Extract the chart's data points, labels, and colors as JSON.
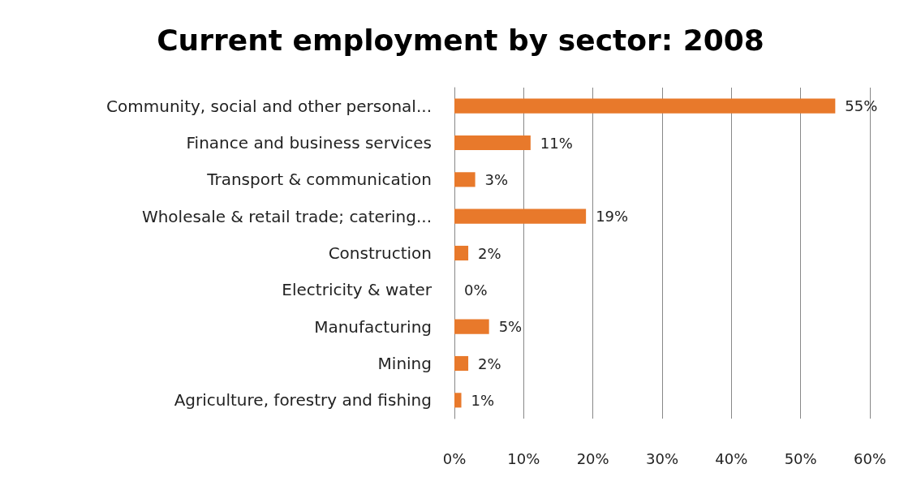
{
  "chart_data": {
    "type": "bar",
    "orientation": "horizontal",
    "title": "Current employment by sector: 2008",
    "categories": [
      "Community, social and other personal...",
      "Finance and business services",
      "Transport & communication",
      "Wholesale & retail trade; catering...",
      "Construction",
      "Electricity & water",
      "Manufacturing",
      "Mining",
      "Agriculture, forestry and fishing"
    ],
    "values": [
      55,
      11,
      3,
      19,
      2,
      0,
      5,
      2,
      1
    ],
    "value_labels": [
      "55%",
      "11%",
      "3%",
      "19%",
      "2%",
      "0%",
      "5%",
      "2%",
      "1%"
    ],
    "color": "#e8792b",
    "xlim": [
      0,
      60
    ],
    "xticks": [
      {
        "value": 0,
        "label": "0%"
      },
      {
        "value": 10,
        "label": "10%"
      },
      {
        "value": 20,
        "label": "20%"
      },
      {
        "value": 30,
        "label": "30%"
      },
      {
        "value": 40,
        "label": "40%"
      },
      {
        "value": 50,
        "label": "50%"
      },
      {
        "value": 60,
        "label": "60%"
      }
    ],
    "grid": "x"
  }
}
